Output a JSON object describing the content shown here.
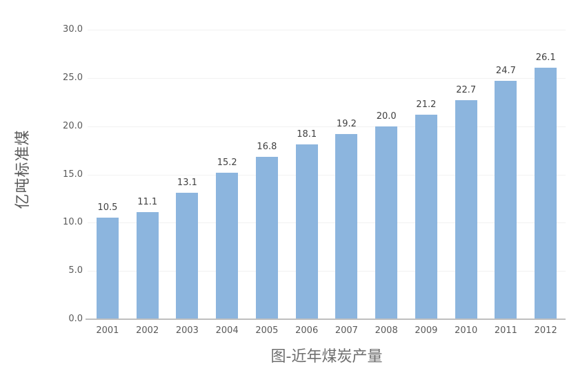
{
  "chart_data": {
    "type": "bar",
    "title": "图-近年煤炭产量",
    "xlabel": "",
    "ylabel": "亿吨标准煤",
    "categories": [
      "2001",
      "2002",
      "2003",
      "2004",
      "2005",
      "2006",
      "2007",
      "2008",
      "2009",
      "2010",
      "2011",
      "2012"
    ],
    "values": [
      10.5,
      11.1,
      13.1,
      15.2,
      16.8,
      18.1,
      19.2,
      20.0,
      21.2,
      22.7,
      24.7,
      26.1
    ],
    "data_labels": [
      "10.5",
      "11.1",
      "13.1",
      "15.2",
      "16.8",
      "18.1",
      "19.2",
      "20.0",
      "21.2",
      "22.7",
      "24.7",
      "26.1"
    ],
    "ylim": [
      0,
      30
    ],
    "yticks": {
      "values": [
        0,
        5,
        10,
        15,
        20,
        25,
        30
      ],
      "labels": [
        "0.0",
        "5.0",
        "10.0",
        "15.0",
        "20.0",
        "25.0",
        "30.0"
      ]
    },
    "grid": true,
    "legend": "none",
    "colors": {
      "bar": "#8cb5de",
      "grid_line": "#f1f1f1",
      "axis_line": "#bfbfbf",
      "tick_label": "#595959",
      "data_label": "#404040",
      "title": "#6e6e6e",
      "background": "#ffffff"
    }
  }
}
